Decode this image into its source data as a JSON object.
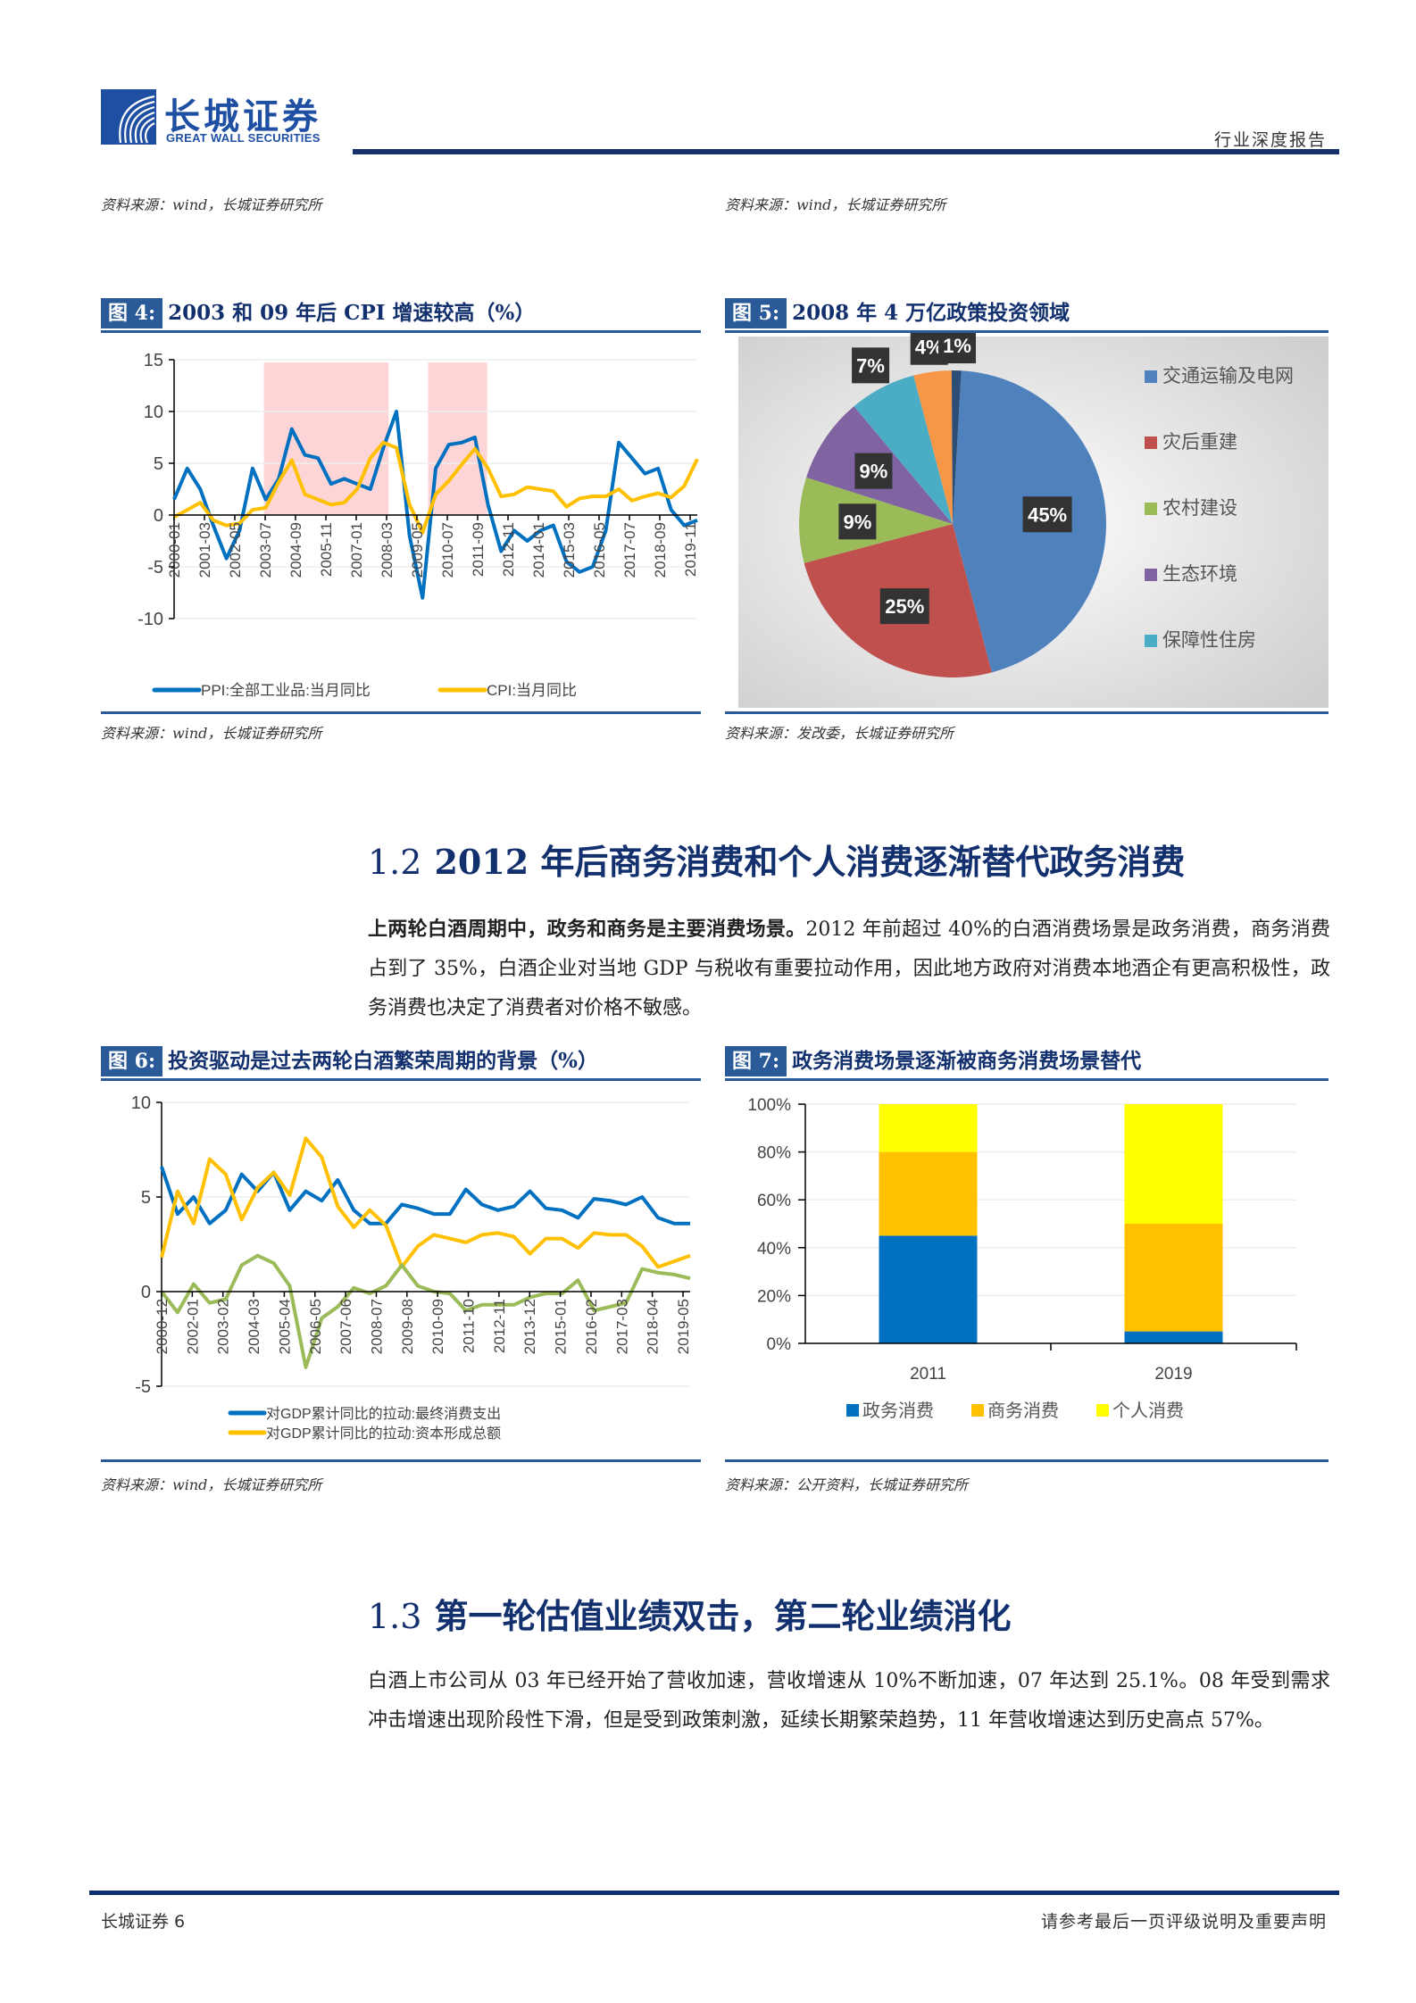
{
  "header": {
    "logo_cn": "长城证券",
    "logo_en": "GREAT WALL SECURITIES",
    "report_type": "行业深度报告"
  },
  "top_sources": {
    "left": "资料来源：wind，长城证券研究所",
    "right": "资料来源：wind，长城证券研究所"
  },
  "figures": {
    "fig4": {
      "label": "图 4:",
      "title": "2003 和 09 年后 CPI 增速较高（%）",
      "source": "资料来源：wind，长城证券研究所"
    },
    "fig5": {
      "label": "图 5:",
      "title": "2008 年 4 万亿政策投资领域",
      "source": "资料来源：发改委，长城证券研究所"
    },
    "fig6": {
      "label": "图 6:",
      "title": "投资驱动是过去两轮白酒繁荣周期的背景（%）",
      "source": "资料来源：wind，长城证券研究所"
    },
    "fig7": {
      "label": "图 7:",
      "title": "政务消费场景逐渐被商务消费场景替代",
      "source": "资料来源：公开资料，长城证券研究所"
    }
  },
  "section_1_2": {
    "number": "1.2",
    "title": "2012 年后商务消费和个人消费逐渐替代政务消费",
    "para_bold": "上两轮白酒周期中，政务和商务是主要消费场景。",
    "para_text": "2012 年前超过 40%的白酒消费场景是政务消费，商务消费占到了 35%，白酒企业对当地 GDP 与税收有重要拉动作用，因此地方政府对消费本地酒企有更高积极性，政务消费也决定了消费者对价格不敏感。"
  },
  "section_1_3": {
    "number": "1.3",
    "title": "第一轮估值业绩双击，第二轮业绩消化",
    "para_text": "白酒上市公司从 03 年已经开始了营收加速，营收增速从 10%不断加速，07 年达到 25.1%。08 年受到需求冲击增速出现阶段性下滑，但是受到政策刺激，延续长期繁荣趋势，11 年营收增速达到历史高点 57%。"
  },
  "footer": {
    "left": "长城证券 6",
    "right": "请参考最后一页评级说明及重要声明"
  },
  "chart_data": [
    {
      "id": "fig4",
      "type": "line",
      "title": "2003 和 09 年后 CPI 增速较高（%）",
      "xlabel": "",
      "ylabel": "%",
      "ylim": [
        -10,
        15
      ],
      "yticks": [
        -10,
        -5,
        0,
        5,
        10,
        15
      ],
      "x_ticklabels": [
        "2000-01",
        "2001-03",
        "2002-05",
        "2003-07",
        "2004-09",
        "2005-11",
        "2007-01",
        "2008-03",
        "2009-05",
        "2010-07",
        "2011-09",
        "2012-11",
        "2014-01",
        "2015-03",
        "2016-05",
        "2017-07",
        "2018-09",
        "2019-11"
      ],
      "shaded_ranges": [
        [
          "2003-06",
          "2008-03"
        ],
        [
          "2009-09",
          "2011-12"
        ]
      ],
      "grid": true,
      "legend_position": "bottom",
      "x": [
        "2000-01",
        "2000-07",
        "2001-01",
        "2001-07",
        "2002-01",
        "2002-07",
        "2003-01",
        "2003-07",
        "2004-01",
        "2004-07",
        "2005-01",
        "2005-07",
        "2006-01",
        "2006-07",
        "2007-01",
        "2007-07",
        "2008-01",
        "2008-07",
        "2009-01",
        "2009-07",
        "2010-01",
        "2010-07",
        "2011-01",
        "2011-07",
        "2012-01",
        "2012-07",
        "2013-01",
        "2013-07",
        "2014-01",
        "2014-07",
        "2015-01",
        "2015-07",
        "2016-01",
        "2016-07",
        "2017-01",
        "2017-07",
        "2018-01",
        "2018-07",
        "2019-01",
        "2019-07",
        "2019-12"
      ],
      "series": [
        {
          "name": "PPI:全部工业品:当月同比",
          "color": "#0070c0",
          "values": [
            1.5,
            4.5,
            2.5,
            -1.0,
            -4.2,
            -1.5,
            4.5,
            1.5,
            3.5,
            8.3,
            5.8,
            5.5,
            3.0,
            3.5,
            3.0,
            2.5,
            6.5,
            10.0,
            -2.0,
            -8.0,
            4.5,
            6.8,
            7.0,
            7.5,
            1.0,
            -3.5,
            -1.5,
            -2.5,
            -1.5,
            -1.0,
            -4.5,
            -5.5,
            -5.0,
            -1.5,
            7.0,
            5.5,
            4.0,
            4.5,
            0.5,
            -1.0,
            -0.5
          ]
        },
        {
          "name": "CPI:当月同比",
          "color": "#ffc000",
          "values": [
            -0.2,
            0.5,
            1.2,
            -0.5,
            -1.0,
            -0.8,
            0.5,
            0.7,
            3.2,
            5.3,
            2.0,
            1.5,
            1.0,
            1.2,
            2.5,
            5.5,
            7.0,
            6.5,
            1.0,
            -1.7,
            2.0,
            3.3,
            4.9,
            6.4,
            4.5,
            1.8,
            2.0,
            2.7,
            2.5,
            2.3,
            0.8,
            1.6,
            1.8,
            1.8,
            2.5,
            1.4,
            1.8,
            2.1,
            1.7,
            2.8,
            5.4
          ]
        }
      ]
    },
    {
      "id": "fig5",
      "type": "pie",
      "title": "2008 年 4 万亿政策投资领域",
      "legend_position": "right",
      "slices": [
        {
          "name": "交通运输及电网",
          "value": 45,
          "label": "45%",
          "color": "#4f81bd"
        },
        {
          "name": "灾后重建",
          "value": 25,
          "label": "25%",
          "color": "#c0504d"
        },
        {
          "name": "农村建设",
          "value": 9,
          "label": "9%",
          "color": "#9bbb59"
        },
        {
          "name": "生态环境",
          "value": 9,
          "label": "9%",
          "color": "#8064a2"
        },
        {
          "name": "保障性住房",
          "value": 7,
          "label": "7%",
          "color": "#4bacc6"
        },
        {
          "name": "",
          "value": 4,
          "label": "4%",
          "color": "#f79646"
        },
        {
          "name": "",
          "value": 1,
          "label": "1%",
          "color": "#2c4d75"
        }
      ],
      "legend_entries": [
        "交通运输及电网",
        "灾后重建",
        "农村建设",
        "生态环境",
        "保障性住房"
      ]
    },
    {
      "id": "fig6",
      "type": "line",
      "title": "投资驱动是过去两轮白酒繁荣周期的背景（%）",
      "ylim": [
        -5,
        10
      ],
      "yticks": [
        -5,
        0,
        5,
        10
      ],
      "x_ticklabels": [
        "2000-12",
        "2002-01",
        "2003-02",
        "2004-03",
        "2005-04",
        "2006-05",
        "2007-06",
        "2008-07",
        "2009-08",
        "2010-09",
        "2011-10",
        "2012-11",
        "2013-12",
        "2015-01",
        "2016-02",
        "2017-03",
        "2018-04",
        "2019-05"
      ],
      "grid": true,
      "legend_position": "bottom",
      "x": [
        "2000",
        "2001",
        "2002",
        "2003",
        "2004",
        "2005",
        "2006",
        "2007",
        "2008",
        "2009",
        "2010",
        "2011",
        "2012",
        "2013",
        "2014",
        "2015-03",
        "2015-06",
        "2015-09",
        "2015-12",
        "2016-03",
        "2016-06",
        "2016-09",
        "2016-12",
        "2017-03",
        "2017-06",
        "2017-09",
        "2017-12",
        "2018-03",
        "2018-06",
        "2018-09",
        "2018-12",
        "2019-03",
        "2019-06",
        "2019-09"
      ],
      "series": [
        {
          "name": "对GDP累计同比的拉动:最终消费支出",
          "color": "#0070c0",
          "values": [
            6.6,
            4.1,
            5.0,
            3.6,
            4.3,
            6.2,
            5.3,
            6.3,
            4.3,
            5.3,
            4.8,
            5.9,
            4.3,
            3.6,
            3.6,
            4.6,
            4.4,
            4.1,
            4.1,
            5.4,
            4.6,
            4.3,
            4.5,
            5.3,
            4.4,
            4.3,
            3.9,
            4.9,
            4.8,
            4.6,
            5.0,
            3.9,
            3.6,
            3.6
          ]
        },
        {
          "name": "对GDP累计同比的拉动:资本形成总额",
          "color": "#ffc000",
          "values": [
            1.8,
            5.3,
            3.6,
            7.0,
            6.2,
            3.8,
            5.5,
            6.3,
            5.1,
            8.1,
            7.1,
            4.5,
            3.4,
            4.3,
            3.5,
            1.3,
            2.4,
            3.0,
            2.8,
            2.6,
            3.0,
            3.1,
            2.9,
            2.0,
            2.8,
            2.8,
            2.3,
            3.1,
            3.0,
            3.0,
            2.4,
            1.3,
            1.6,
            1.9
          ]
        },
        {
          "name": "",
          "color": "#9bbb59",
          "values": [
            0.0,
            -1.1,
            0.4,
            -0.6,
            -0.4,
            1.4,
            1.9,
            1.5,
            0.3,
            -4.0,
            -1.4,
            -0.8,
            0.2,
            -0.1,
            0.3,
            1.4,
            0.3,
            0.0,
            -0.1,
            -1.0,
            -0.7,
            -0.7,
            -0.7,
            -0.3,
            -0.1,
            -0.1,
            0.6,
            -1.0,
            -0.8,
            -0.6,
            1.2,
            1.0,
            0.9,
            0.7
          ]
        }
      ]
    },
    {
      "id": "fig7",
      "type": "bar",
      "stacked": true,
      "title": "政务消费场景逐渐被商务消费场景替代",
      "categories": [
        "2011",
        "2019"
      ],
      "ylim": [
        0,
        100
      ],
      "yticks": [
        "0%",
        "20%",
        "40%",
        "60%",
        "80%",
        "100%"
      ],
      "grid": true,
      "legend_position": "bottom",
      "series": [
        {
          "name": "政务消费",
          "color": "#0070c0",
          "values": [
            45,
            5
          ]
        },
        {
          "name": "商务消费",
          "color": "#ffc000",
          "values": [
            35,
            45
          ]
        },
        {
          "name": "个人消费",
          "color": "#ffff00",
          "values": [
            20,
            50
          ]
        }
      ]
    }
  ]
}
